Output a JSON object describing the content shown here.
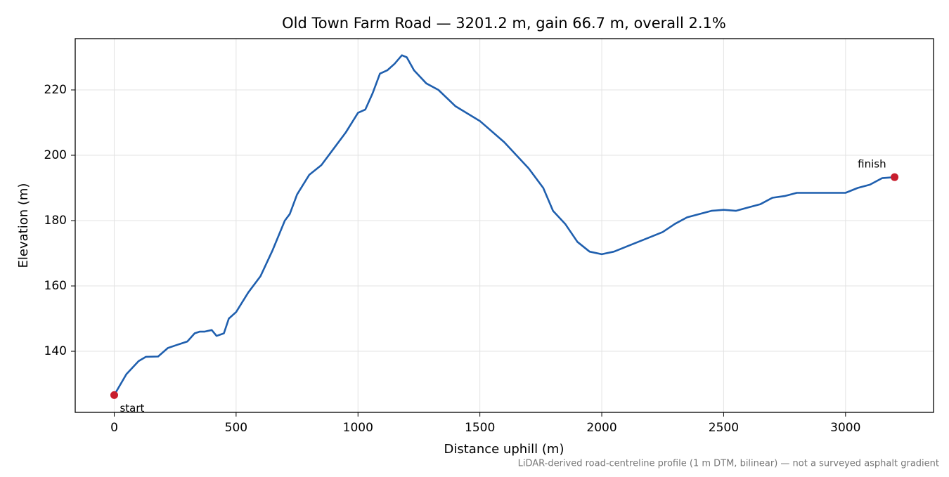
{
  "chart_data": {
    "type": "line",
    "title": "Old Town Farm Road — 3201.2 m, gain 66.7 m, overall 2.1%",
    "x_label": "Distance uphill (m)",
    "y_label": "Elevation (m)",
    "note": "LiDAR-derived road-centreline profile (1 m DTM, bilinear) — not a surveyed asphalt gradient",
    "xlim": [
      -160,
      3361
    ],
    "ylim": [
      121.3,
      235.7
    ],
    "xticks": [
      0,
      500,
      1000,
      1500,
      2000,
      2500,
      3000
    ],
    "yticks": [
      140,
      160,
      180,
      200,
      220
    ],
    "grid": true,
    "series": [
      {
        "color": "#1f5fae",
        "x": [
          0,
          50,
          100,
          130,
          180,
          220,
          260,
          300,
          330,
          350,
          370,
          400,
          420,
          450,
          470,
          500,
          550,
          600,
          650,
          700,
          720,
          750,
          800,
          850,
          900,
          950,
          1000,
          1030,
          1060,
          1090,
          1120,
          1150,
          1180,
          1200,
          1230,
          1280,
          1330,
          1400,
          1500,
          1600,
          1700,
          1760,
          1800,
          1850,
          1900,
          1950,
          2000,
          2050,
          2100,
          2200,
          2250,
          2300,
          2350,
          2400,
          2450,
          2500,
          2550,
          2600,
          2650,
          2700,
          2750,
          2800,
          2850,
          2900,
          2950,
          3000,
          3050,
          3100,
          3150,
          3201.2
        ],
        "values": [
          126.6,
          133,
          137,
          138.3,
          138.4,
          141,
          142,
          143,
          145.5,
          146,
          146,
          146.5,
          144.7,
          145.5,
          150,
          152,
          158,
          163,
          171,
          180,
          182,
          188,
          194,
          197,
          202,
          207,
          213,
          214,
          219,
          225,
          226,
          228,
          230.6,
          230,
          226,
          222,
          220,
          215,
          210.5,
          204,
          196,
          190,
          183,
          179,
          173.5,
          170.5,
          169.7,
          170.5,
          172,
          175,
          176.5,
          179,
          181,
          182,
          183,
          183.3,
          183,
          184,
          185,
          187,
          187.5,
          188.5,
          188.5,
          188.5,
          188.5,
          188.5,
          190,
          191,
          193,
          193.3
        ]
      }
    ],
    "points": [
      {
        "label": "start",
        "x": 0,
        "y": 126.6
      },
      {
        "label": "finish",
        "x": 3201.2,
        "y": 193.3
      }
    ],
    "point_color": "#c81e2e"
  }
}
